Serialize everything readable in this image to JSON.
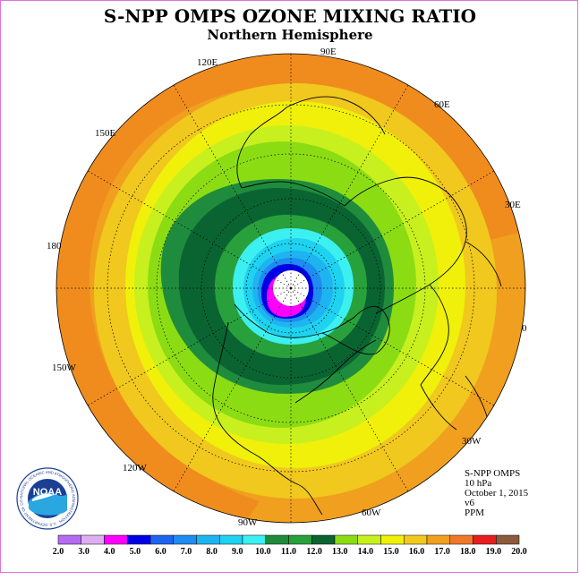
{
  "title": "S-NPP OMPS OZONE MIXING RATIO",
  "subtitle": "Northern Hemisphere",
  "longitude_labels": [
    {
      "id": "90e",
      "text": "90E"
    },
    {
      "id": "60e",
      "text": "60E"
    },
    {
      "id": "30e",
      "text": "30E"
    },
    {
      "id": "0",
      "text": "0"
    },
    {
      "id": "30w",
      "text": "30W"
    },
    {
      "id": "60w",
      "text": "60W"
    },
    {
      "id": "90w",
      "text": "90W"
    },
    {
      "id": "120w",
      "text": "120W"
    },
    {
      "id": "150w",
      "text": "150W"
    },
    {
      "id": "180",
      "text": "180"
    },
    {
      "id": "150e",
      "text": "150E"
    },
    {
      "id": "120e",
      "text": "120E"
    }
  ],
  "info": {
    "instrument": "S-NPP OMPS",
    "level": "10 hPa",
    "date": "October 1, 2015",
    "version": "v6",
    "units": "PPM"
  },
  "logo": {
    "text": "NOAA",
    "ring_text": "NATIONAL OCEANIC AND ATMOSPHERIC ADMINISTRATION · U.S. DEPARTMENT OF COMMERCE"
  },
  "colorbar": {
    "labels": [
      "2.0",
      "3.0",
      "4.0",
      "5.0",
      "6.0",
      "7.0",
      "8.0",
      "9.0",
      "10.0",
      "11.0",
      "12.0",
      "13.0",
      "14.0",
      "15.0",
      "16.0",
      "17.0",
      "18.0",
      "19.0",
      "20.0"
    ],
    "colors": [
      "#b36cf0",
      "#dcb0f0",
      "#ff00ff",
      "#0000e6",
      "#1e64f0",
      "#1e8cf0",
      "#1eb4f0",
      "#1ed2f0",
      "#3cf0f0",
      "#1e8c3c",
      "#28a03c",
      "#0a6432",
      "#8cdc14",
      "#c8f01e",
      "#f0f00a",
      "#f0c81e",
      "#f0a01e",
      "#f07828",
      "#e61e1e",
      "#8c5a3c"
    ]
  },
  "legend_colors": {
    "ring_outer": "#f0a01e",
    "ring_orange_light": "#f0c81e",
    "ring_yellow": "#f0f00a",
    "ring_lightgreen": "#c8f01e",
    "ring_green": "#8cdc14",
    "ring_darkgreen": "#0a6432",
    "ring_midgreen": "#1e8c3c",
    "ring_cyan": "#3cf0f0",
    "ring_blue": "#1e8cf0",
    "ring_navy": "#0000e6",
    "ring_magenta": "#ff00ff"
  }
}
